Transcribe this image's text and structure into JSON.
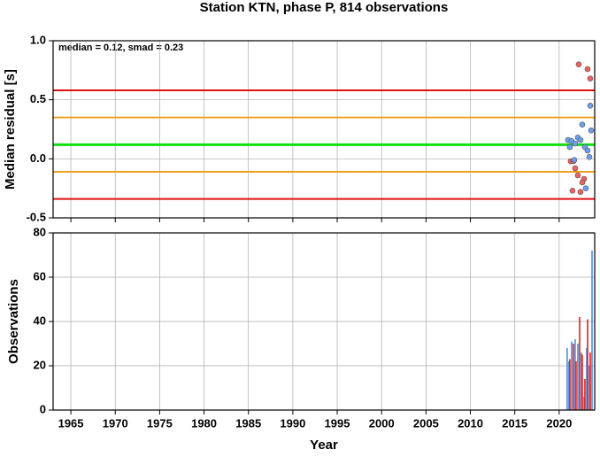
{
  "chart_data": [
    {
      "type": "scatter",
      "title": "Station KTN, phase P, 814 observations",
      "y_label": "Median residual [s]",
      "annotation": "median = 0.12, smad = 0.23",
      "xlim": [
        1963,
        2024
      ],
      "xticks": [
        1965,
        1970,
        1975,
        1980,
        1985,
        1990,
        1995,
        2000,
        2005,
        2010,
        2015,
        2020
      ],
      "ylim": [
        -0.5,
        1.0
      ],
      "yticks": [
        -0.5,
        {
          "value": 0,
          "label": "0.0"
        },
        0.5,
        {
          "value": 1,
          "label": "1.0"
        }
      ],
      "grid": true,
      "reference_lines": [
        {
          "value": 0.58,
          "color": "#e01010"
        },
        {
          "value": 0.35,
          "color": "#f0a020"
        },
        {
          "value": 0.12,
          "color": "#10e010"
        },
        {
          "value": -0.11,
          "color": "#f0a020"
        },
        {
          "value": -0.34,
          "color": "#e01010"
        }
      ],
      "series": [
        {
          "color": "#f06060",
          "x": [
            2022.2,
            2023.2,
            2023.5,
            2021.3,
            2021.6,
            2021.8,
            2021.5,
            2022.1,
            2022.4,
            2022.8,
            2022.6
          ],
          "values": [
            0.8,
            0.76,
            0.68,
            -0.02,
            -0.02,
            -0.08,
            -0.27,
            -0.14,
            -0.28,
            -0.17,
            -0.2
          ]
        },
        {
          "color": "#6aa0f0",
          "x": [
            2021.0,
            2021.4,
            2021.8,
            2022.1,
            2022.4,
            2022.6,
            2022.9,
            2023.2,
            2023.4,
            2023.5,
            2023.6,
            2023.0,
            2021.7,
            2021.2
          ],
          "values": [
            0.16,
            0.15,
            0.13,
            0.18,
            0.16,
            0.29,
            0.1,
            0.07,
            0.015,
            0.45,
            0.24,
            -0.25,
            -0.01,
            0.1
          ]
        }
      ]
    },
    {
      "type": "bar",
      "y_label": "Observations",
      "x_label": "Year",
      "xlim": [
        1963,
        2024
      ],
      "xticks": [
        1965,
        1970,
        1975,
        1980,
        1985,
        1990,
        1995,
        2000,
        2005,
        2010,
        2015,
        2020
      ],
      "ylim": [
        0,
        80
      ],
      "yticks": [
        0,
        20,
        40,
        60,
        80
      ],
      "grid": true,
      "series": [
        {
          "color": "#4a90e0",
          "x": [
            2020.9,
            2021.1,
            2021.4,
            2021.8,
            2022.1,
            2022.5,
            2022.8,
            2023.1,
            2023.4,
            2023.7
          ],
          "values": [
            28,
            22,
            31,
            32,
            30,
            26,
            6,
            28,
            20,
            72
          ]
        },
        {
          "color": "#e02020",
          "x": [
            2021.2,
            2021.6,
            2021.9,
            2022.3,
            2022.6,
            2022.9,
            2023.2,
            2023.5
          ],
          "values": [
            23,
            30,
            22,
            42,
            25,
            14,
            41,
            26
          ]
        }
      ]
    }
  ]
}
